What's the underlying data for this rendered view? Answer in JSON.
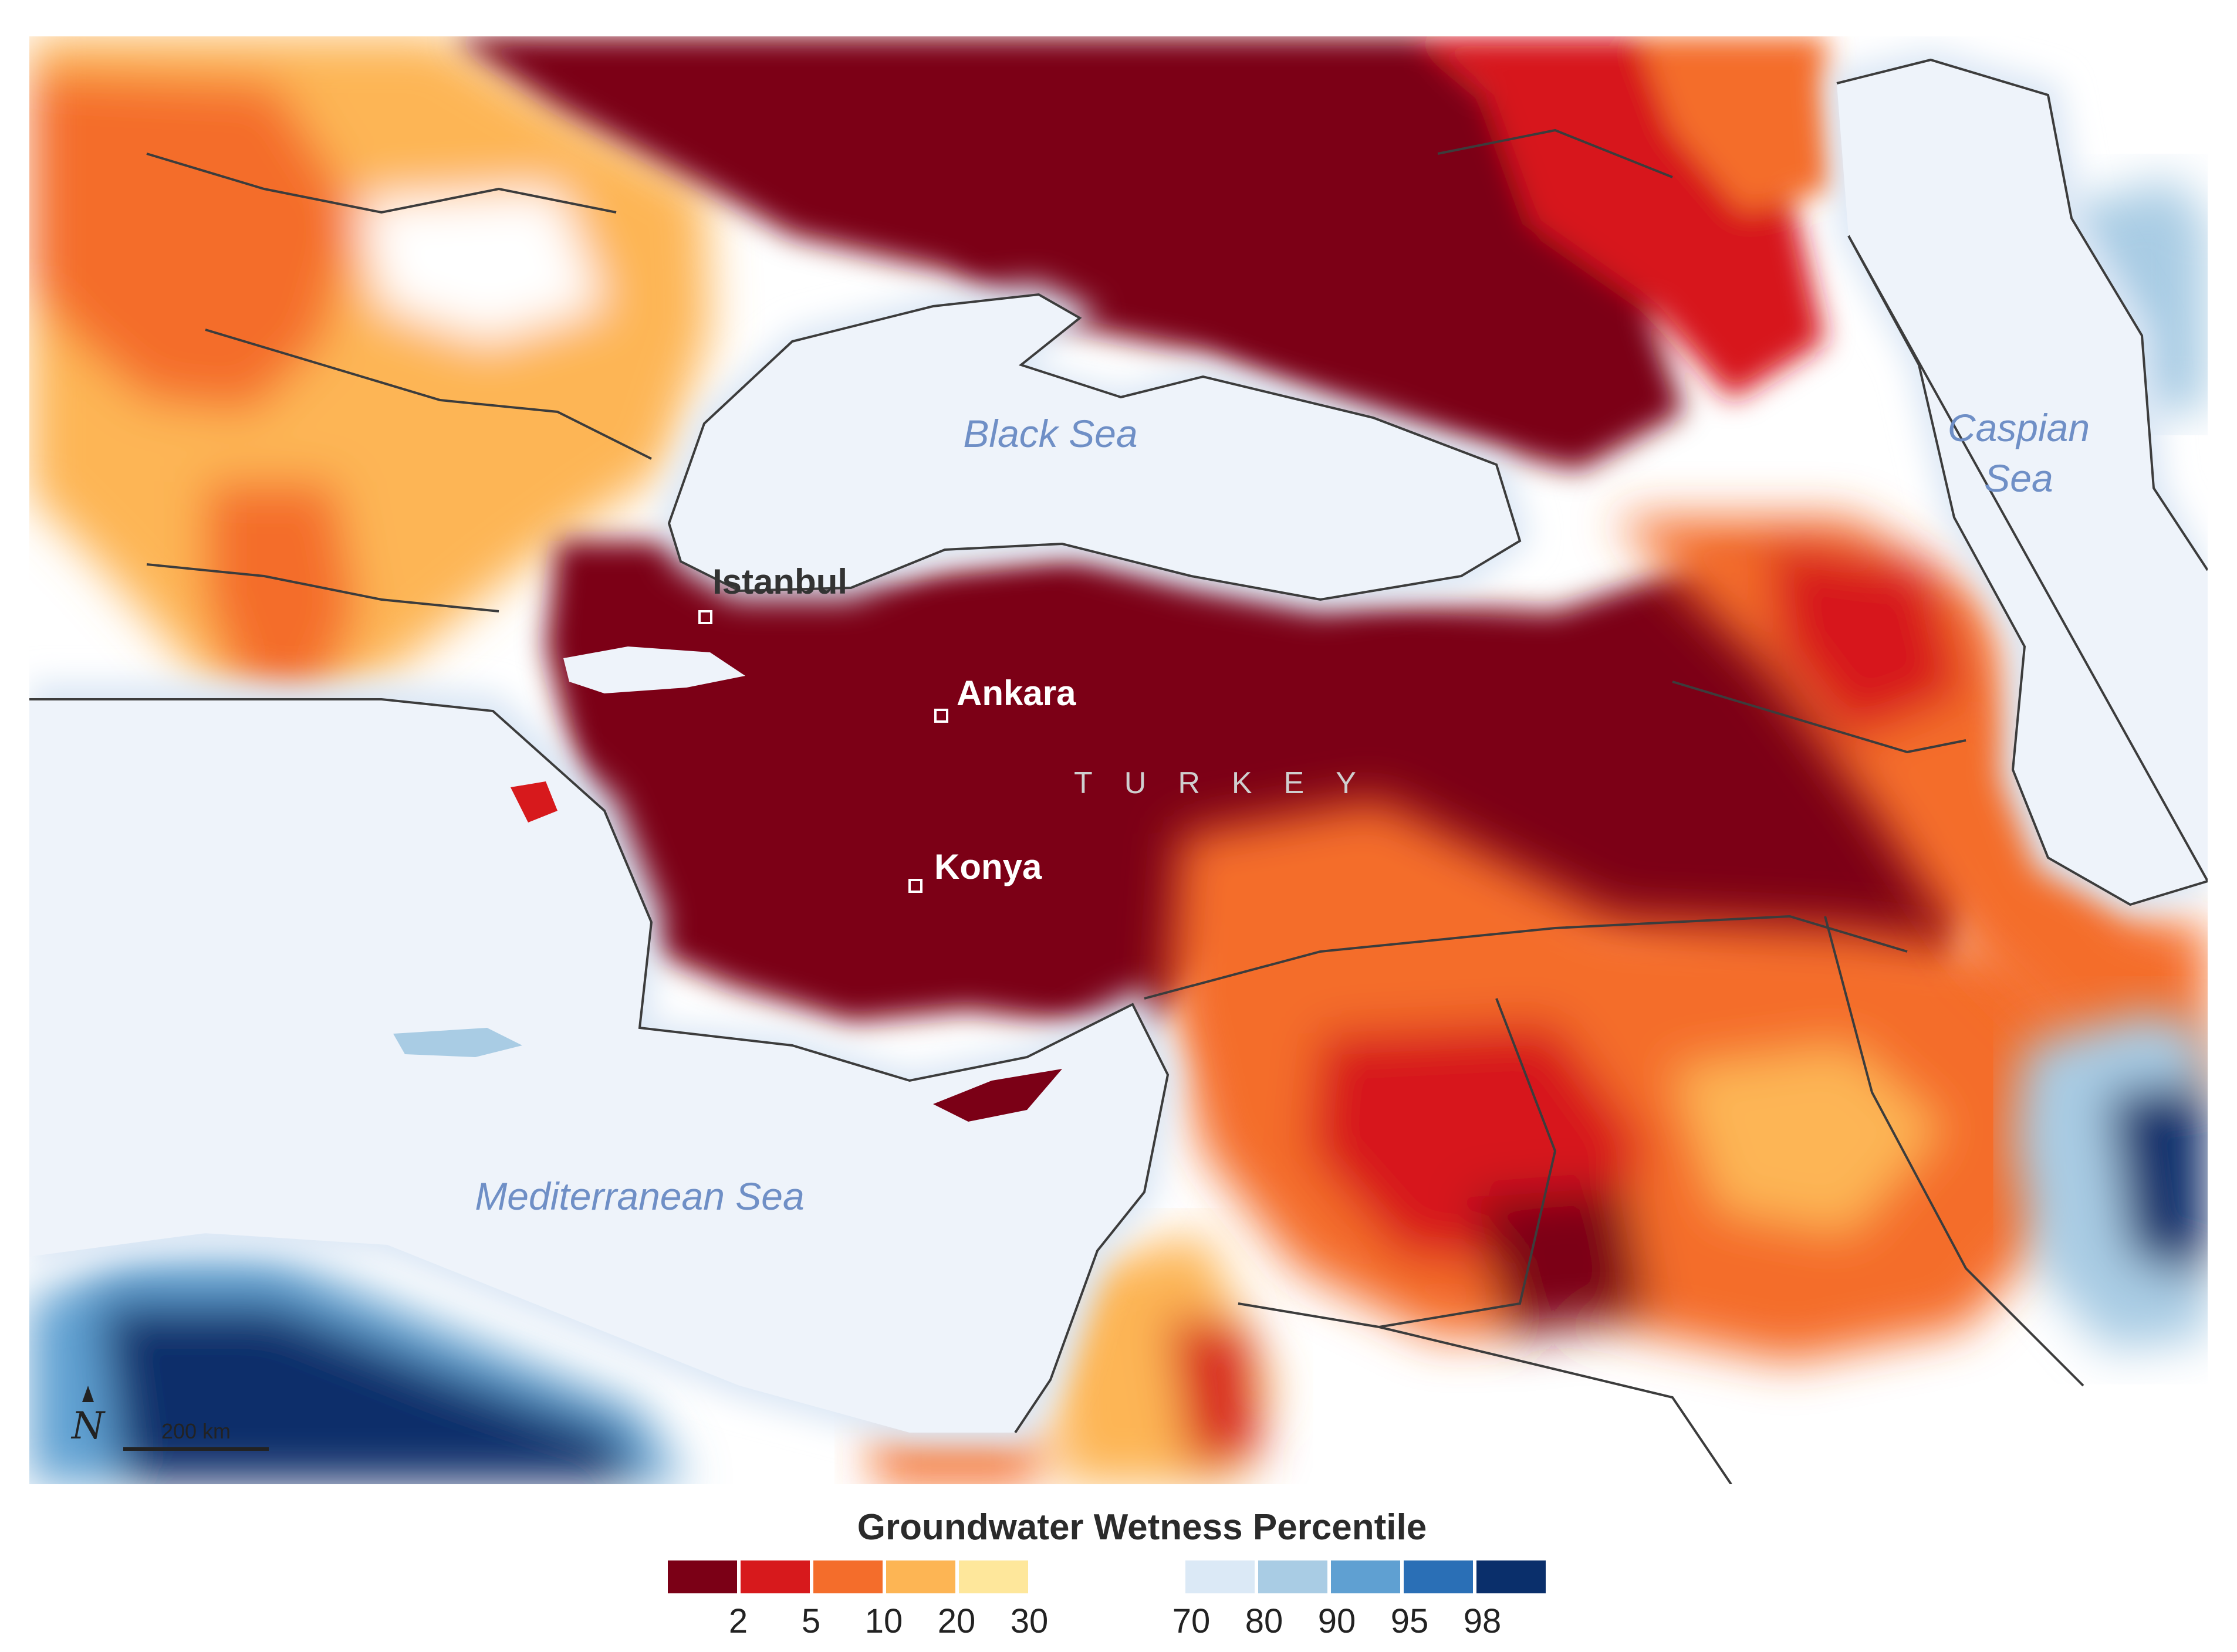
{
  "map": {
    "labels": {
      "black_sea": "Black Sea",
      "caspian_line1": "Caspian",
      "caspian_line2": "Sea",
      "mediterranean": "Mediterranean Sea",
      "istanbul": "Istanbul",
      "ankara": "Ankara",
      "konya": "Konya",
      "turkey": "TURKEY"
    },
    "north_arrow": "N",
    "scale_bar": "200 km"
  },
  "legend": {
    "title": "Groundwater Wetness Percentile",
    "dry_colors": [
      "#7b0016",
      "#d7191c",
      "#f46d2b",
      "#fdb554",
      "#fee79b"
    ],
    "wet_colors": [
      "#dbe9f6",
      "#a9cce4",
      "#5fa0d2",
      "#2a6fb6",
      "#0a2f6b"
    ],
    "dry_ticks": [
      "2",
      "5",
      "10",
      "20",
      "30"
    ],
    "wet_ticks": [
      "70",
      "80",
      "90",
      "95",
      "98"
    ]
  },
  "colors": {
    "water": "#eef3fa",
    "coast_glow": "#dbe7f5",
    "border": "#3c3c3c",
    "neutral_land": "#ffffff"
  }
}
